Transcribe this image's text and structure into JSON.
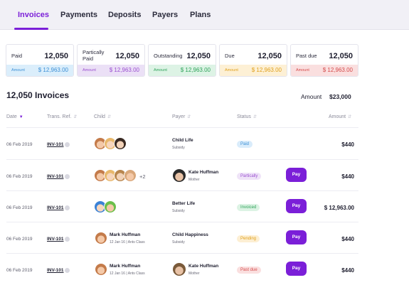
{
  "nav": {
    "tabs": [
      {
        "label": "Invoices"
      },
      {
        "label": "Payments"
      },
      {
        "label": "Deposits"
      },
      {
        "label": "Payers"
      },
      {
        "label": "Plans"
      }
    ]
  },
  "cards": [
    {
      "label": "Paid",
      "value": "12,050",
      "foot_label": "Amount",
      "amount": "$ 12,963.00",
      "foot_bg": "#dbeefb",
      "foot_color": "#3b8fd6"
    },
    {
      "label": "Partically\nPaid",
      "value": "12,050",
      "foot_label": "Amount",
      "amount": "$ 12,963.00",
      "foot_bg": "#ebe0f6",
      "foot_color": "#9a4fd0"
    },
    {
      "label": "Outstanding",
      "value": "12,050",
      "foot_label": "Amount",
      "amount": "$ 12,963.00",
      "foot_bg": "#ddf3e5",
      "foot_color": "#2fa35a"
    },
    {
      "label": "Due",
      "value": "12,050",
      "foot_label": "Amount",
      "amount": "$ 12,963.00",
      "foot_bg": "#fdf0d5",
      "foot_color": "#e0a01c"
    },
    {
      "label": "Past due",
      "value": "12,050",
      "foot_label": "Amount",
      "amount": "$ 12,963.00",
      "foot_bg": "#fadfdf",
      "foot_color": "#d54b4b"
    }
  ],
  "summary": {
    "title": "12,050 Invoices",
    "amount_label": "Amount",
    "amount_value": "$23,000"
  },
  "columns": {
    "date": "Date",
    "ref": "Trans. Ref.",
    "child": "Child",
    "payer": "Payer",
    "status": "Status",
    "amount": "Amount"
  },
  "rows": [
    {
      "date": "06 Feb 2019",
      "ref": "INV-101",
      "payer_name": "Child Life",
      "payer_sub": "Subsidy",
      "status": "Paid",
      "amount": "$440"
    },
    {
      "date": "06 Feb 2019",
      "ref": "INV-101",
      "more": "+2",
      "payer_name": "Kate Huffman",
      "payer_sub": "Mother",
      "status": "Partically",
      "pay": "Pay",
      "amount": "$440"
    },
    {
      "date": "06 Feb 2019",
      "ref": "INV-101",
      "payer_name": "Better Life",
      "payer_sub": "Subsidy",
      "status": "Invoiced",
      "pay": "Pay",
      "amount": "$ 12,963.00"
    },
    {
      "date": "06 Feb 2019",
      "ref": "INV-101",
      "child_name": "Mark Huffman",
      "child_sub": "12 Jan 16  |  Ants Class",
      "payer_name": "Child Happiness",
      "payer_sub": "Subsidy",
      "status": "Pending",
      "pay": "Pay",
      "amount": "$440"
    },
    {
      "date": "06 Feb 2019",
      "ref": "INV-101",
      "child_name": "Mark Huffman",
      "child_sub": "12 Jan 16  |  Ants Class",
      "payer_name": "Kate Huffman",
      "payer_sub": "Mother",
      "status": "Past due",
      "pay": "Pay",
      "amount": "$440"
    }
  ],
  "status_colors": {
    "Paid": {
      "bg": "#d9ecfb",
      "fg": "#3b8fd6"
    },
    "Partically": {
      "bg": "#efe3f8",
      "fg": "#9a4fd0"
    },
    "Invoiced": {
      "bg": "#dcf3e4",
      "fg": "#2fa35a"
    },
    "Pending": {
      "bg": "#fdefd3",
      "fg": "#e0a01c"
    },
    "Past due": {
      "bg": "#fadfdf",
      "fg": "#d54b4b"
    }
  },
  "accent_color": "#7b1fd8"
}
